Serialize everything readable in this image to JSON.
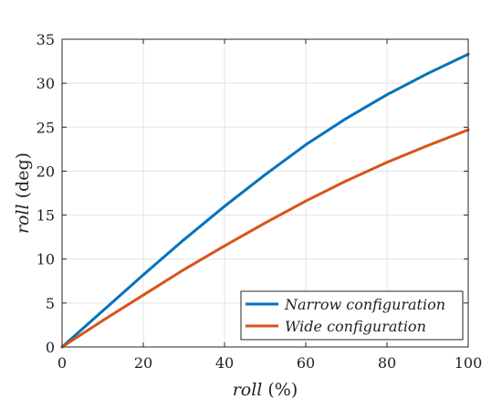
{
  "chart_data": {
    "type": "line",
    "title": "",
    "xlabel": {
      "var": "roll",
      "unit": "(%)"
    },
    "ylabel": {
      "var": "roll",
      "unit": "(deg)"
    },
    "xlim": [
      0,
      100
    ],
    "ylim": [
      0,
      35
    ],
    "xticks": [
      0,
      20,
      40,
      60,
      80,
      100
    ],
    "yticks": [
      0,
      5,
      10,
      15,
      20,
      25,
      30,
      35
    ],
    "grid": true,
    "legend_position": "bottom-right",
    "x": [
      0,
      10,
      20,
      30,
      40,
      50,
      60,
      70,
      80,
      90,
      100
    ],
    "series": [
      {
        "name": "Narrow configuration",
        "color": "#0072BD",
        "values": [
          0,
          4.1,
          8.2,
          12.2,
          16.0,
          19.6,
          23.0,
          26.0,
          28.7,
          31.1,
          33.3
        ]
      },
      {
        "name": "Wide configuration",
        "color": "#D95319",
        "values": [
          0,
          3.0,
          5.9,
          8.8,
          11.5,
          14.1,
          16.6,
          18.9,
          21.0,
          22.9,
          24.7
        ]
      }
    ]
  }
}
